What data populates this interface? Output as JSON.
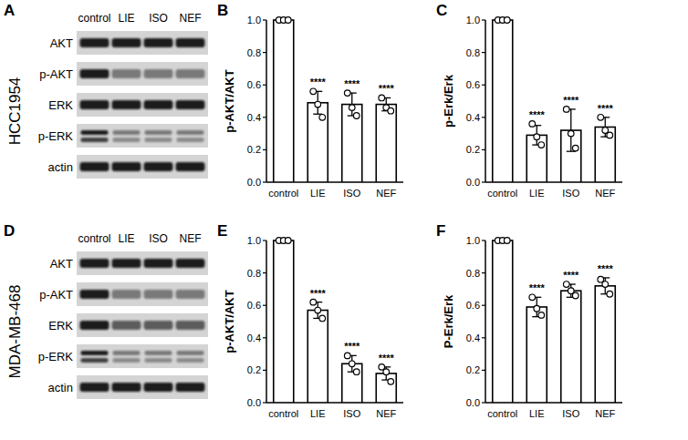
{
  "blots": [
    {
      "panel": "A",
      "cell_line": "HCC1954",
      "lanes": [
        "control",
        "LIE",
        "ISO",
        "NEF"
      ],
      "rows": [
        "AKT",
        "p-AKT",
        "ERK",
        "p-ERK",
        "actin"
      ]
    },
    {
      "panel": "D",
      "cell_line": "MDA-MB-468",
      "lanes": [
        "control",
        "LIE",
        "ISO",
        "NEF"
      ],
      "rows": [
        "AKT",
        "p-AKT",
        "ERK",
        "p-ERK",
        "actin"
      ]
    }
  ],
  "chart_data": [
    {
      "panel": "B",
      "type": "bar",
      "y_label": "p-AKT/AKT",
      "categories": [
        "control",
        "LIE",
        "ISO",
        "NEF"
      ],
      "values": [
        1.0,
        0.49,
        0.48,
        0.48
      ],
      "errors": [
        0,
        0.07,
        0.07,
        0.04
      ],
      "points": [
        [
          1.0,
          1.0,
          1.0
        ],
        [
          0.56,
          0.48,
          0.4
        ],
        [
          0.55,
          0.46,
          0.41
        ],
        [
          0.52,
          0.46,
          0.44
        ]
      ],
      "annotations": [
        null,
        "****",
        "****",
        "****"
      ],
      "color": "#ffffff",
      "ylim": [
        0,
        1.0
      ],
      "yticks": [
        {
          "value": 0,
          "label": "0.0"
        },
        {
          "value": 0.2,
          "label": "0.2"
        },
        {
          "value": 0.4,
          "label": "0.4"
        },
        {
          "value": 0.6,
          "label": "0.6"
        },
        {
          "value": 0.8,
          "label": "0.8"
        },
        {
          "value": 1.0,
          "label": "1.0"
        }
      ],
      "grid": false
    },
    {
      "panel": "C",
      "type": "bar",
      "y_label": "p-Erk/Erk",
      "categories": [
        "control",
        "LIE",
        "ISO",
        "NEF"
      ],
      "values": [
        1.0,
        0.29,
        0.32,
        0.34
      ],
      "errors": [
        0,
        0.06,
        0.13,
        0.06
      ],
      "points": [
        [
          1.0,
          1.0,
          1.0
        ],
        [
          0.36,
          0.28,
          0.23
        ],
        [
          0.45,
          0.3,
          0.21
        ],
        [
          0.4,
          0.32,
          0.29
        ]
      ],
      "annotations": [
        null,
        "****",
        "****",
        "****"
      ],
      "color": "#ffffff",
      "ylim": [
        0,
        1.0
      ],
      "yticks": [
        {
          "value": 0,
          "label": "0.0"
        },
        {
          "value": 0.2,
          "label": "0.2"
        },
        {
          "value": 0.4,
          "label": "0.4"
        },
        {
          "value": 0.6,
          "label": "0.6"
        },
        {
          "value": 0.8,
          "label": "0.8"
        },
        {
          "value": 1.0,
          "label": "1.0"
        }
      ],
      "grid": false
    },
    {
      "panel": "E",
      "type": "bar",
      "y_label": "p-AKT/AKT",
      "categories": [
        "control",
        "LIE",
        "ISO",
        "NEF"
      ],
      "values": [
        1.0,
        0.57,
        0.24,
        0.18
      ],
      "errors": [
        0,
        0.05,
        0.05,
        0.04
      ],
      "points": [
        [
          1.0,
          1.0,
          1.0
        ],
        [
          0.62,
          0.57,
          0.52
        ],
        [
          0.29,
          0.24,
          0.19
        ],
        [
          0.22,
          0.19,
          0.13
        ]
      ],
      "annotations": [
        null,
        "****",
        "****",
        "****"
      ],
      "color": "#ffffff",
      "ylim": [
        0,
        1.0
      ],
      "yticks": [
        {
          "value": 0,
          "label": "0.0"
        },
        {
          "value": 0.2,
          "label": "0.2"
        },
        {
          "value": 0.4,
          "label": "0.4"
        },
        {
          "value": 0.6,
          "label": "0.6"
        },
        {
          "value": 0.8,
          "label": "0.8"
        },
        {
          "value": 1.0,
          "label": "1.0"
        }
      ],
      "grid": false
    },
    {
      "panel": "F",
      "type": "bar",
      "y_label": "P-Erk/Erk",
      "categories": [
        "control",
        "LIE",
        "ISO",
        "NEF"
      ],
      "values": [
        1.0,
        0.59,
        0.69,
        0.72
      ],
      "errors": [
        0,
        0.06,
        0.04,
        0.05
      ],
      "points": [
        [
          1.0,
          1.0,
          1.0
        ],
        [
          0.65,
          0.58,
          0.54
        ],
        [
          0.73,
          0.69,
          0.66
        ],
        [
          0.76,
          0.73,
          0.67
        ]
      ],
      "annotations": [
        null,
        "****",
        "****",
        "****"
      ],
      "color": "#ffffff",
      "ylim": [
        0,
        1.0
      ],
      "yticks": [
        {
          "value": 0,
          "label": "0.0"
        },
        {
          "value": 0.2,
          "label": "0.2"
        },
        {
          "value": 0.4,
          "label": "0.4"
        },
        {
          "value": 0.6,
          "label": "0.6"
        },
        {
          "value": 0.8,
          "label": "0.8"
        },
        {
          "value": 1.0,
          "label": "1.0"
        }
      ],
      "grid": false
    }
  ]
}
